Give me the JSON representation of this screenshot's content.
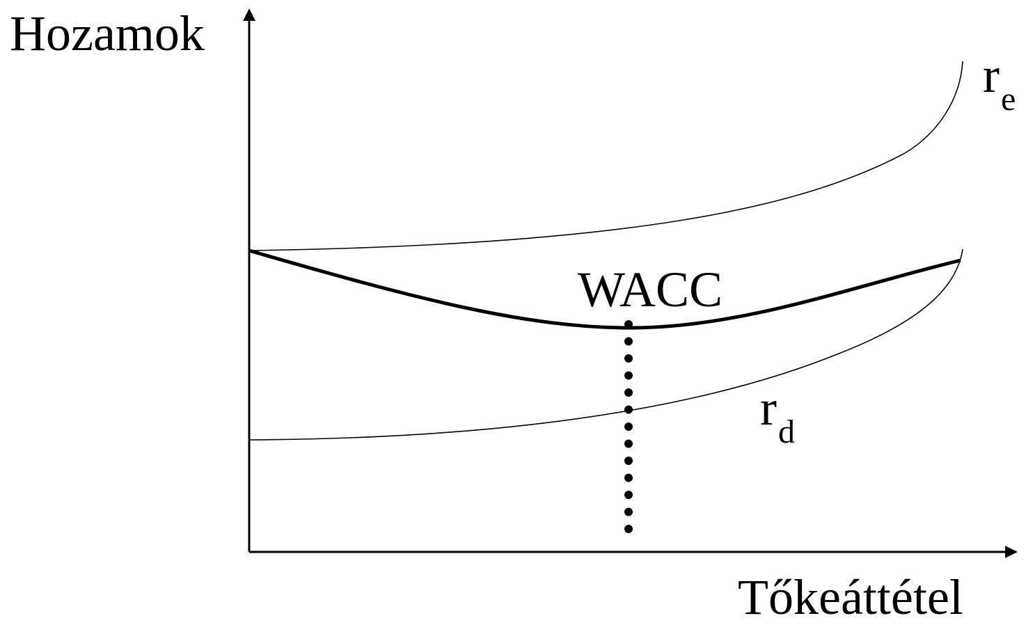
{
  "axes": {
    "y_label": "Hozamok",
    "x_label": "Tőkeáttétel"
  },
  "curves": {
    "re": {
      "main": "r",
      "sub": "e"
    },
    "rd": {
      "main": "r",
      "sub": "d"
    },
    "wacc": {
      "label": "WACC"
    }
  },
  "colors": {
    "stroke": "#000000",
    "background": "#ffffff"
  }
}
